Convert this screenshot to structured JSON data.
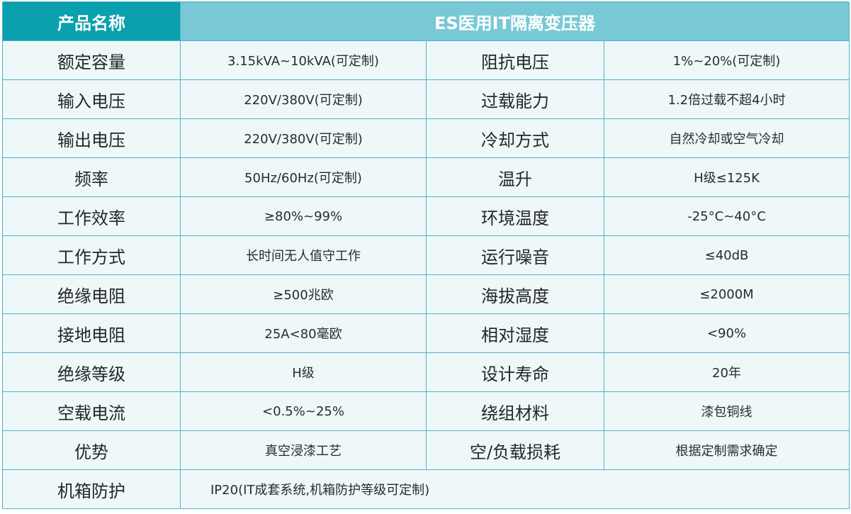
{
  "header": {
    "label": "产品名称",
    "title": "ES医用IT隔离变压器"
  },
  "rows": [
    {
      "label1": "额定容量",
      "value1": "3.15kVA~10kVA(可定制)",
      "label2": "阻抗电压",
      "value2": "1%~20%(可定制)"
    },
    {
      "label1": "输入电压",
      "value1": "220V/380V(可定制)",
      "label2": "过载能力",
      "value2": "1.2倍过载不超4小时"
    },
    {
      "label1": "输出电压",
      "value1": "220V/380V(可定制)",
      "label2": "冷却方式",
      "value2": "自然冷却或空气冷却"
    },
    {
      "label1": "频率",
      "value1": "50Hz/60Hz(可定制)",
      "label2": "温升",
      "value2": "H级≤125K"
    },
    {
      "label1": "工作效率",
      "value1": "≥80%~99%",
      "label2": "环境温度",
      "value2": "-25°C~40°C"
    },
    {
      "label1": "工作方式",
      "value1": "长时间无人值守工作",
      "label2": "运行噪音",
      "value2": "≤40dB"
    },
    {
      "label1": "绝缘电阻",
      "value1": "≥500兆欧",
      "label2": "海拔高度",
      "value2": "≤2000M"
    },
    {
      "label1": "接地电阻",
      "value1": "25A<80毫欧",
      "label2": "相对湿度",
      "value2": "<90%"
    },
    {
      "label1": "绝缘等级",
      "value1": "H级",
      "label2": "设计寿命",
      "value2": "20年"
    },
    {
      "label1": "空载电流",
      "value1": "<0.5%~25%",
      "label2": "绕组材料",
      "value2": "漆包铜线"
    },
    {
      "label1": "优势",
      "value1": "真空浸漆工艺",
      "label2": "空/负载损耗",
      "value2": "根据定制需求确定"
    }
  ],
  "last_row": {
    "label": "机箱防护",
    "value": "IP20(IT成套系统,机箱防护等级可定制)"
  }
}
